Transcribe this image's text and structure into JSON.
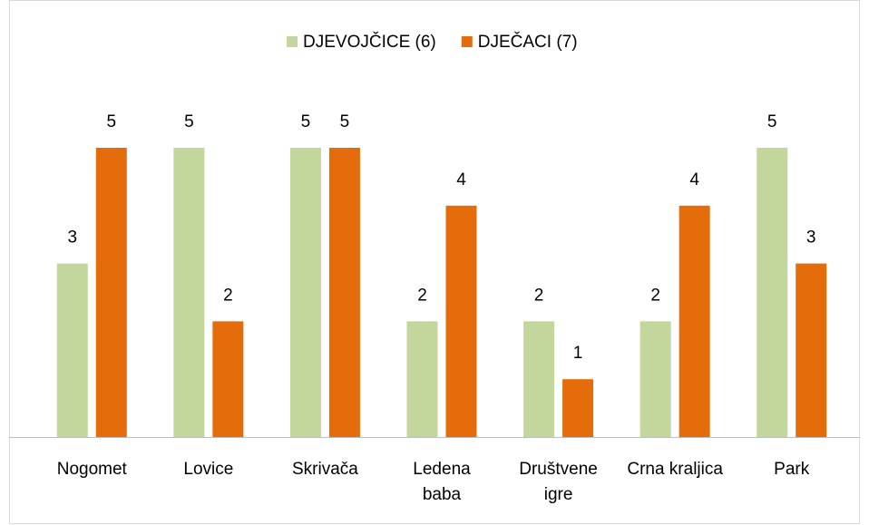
{
  "chart_data": {
    "type": "bar",
    "categories": [
      "Nogomet",
      "Lovice",
      "Skrivača",
      "Ledena baba",
      "Društvene igre",
      "Crna kraljica",
      "Park"
    ],
    "series": [
      {
        "name": "DJEVOJČICE (6)",
        "color": "#c3d69b",
        "values": [
          3,
          5,
          5,
          2,
          2,
          2,
          5
        ]
      },
      {
        "name": "DJEČACI (7)",
        "color": "#e46c0a",
        "values": [
          5,
          2,
          5,
          4,
          1,
          4,
          3
        ]
      }
    ],
    "ylim": [
      0,
      5
    ],
    "grid": false,
    "legend": "top"
  }
}
